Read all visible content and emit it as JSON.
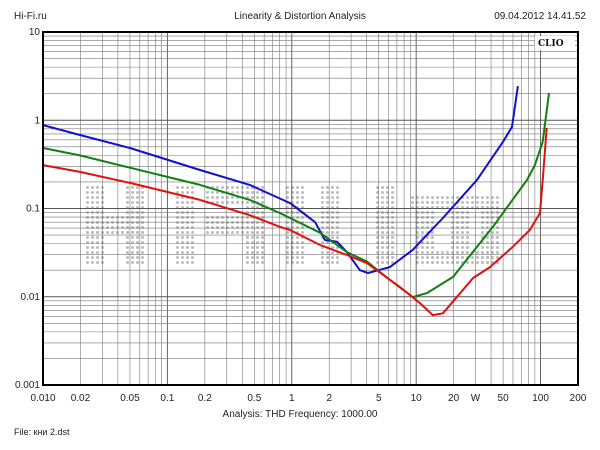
{
  "header": {
    "site": "Hi-Fi.ru",
    "title": "Linearity & Distortion Analysis",
    "datetime": "09.04.2012 14.41.52"
  },
  "footer": {
    "analysis": "Analysis: THD   Frequency: 1000.00",
    "file": "File: кни 2.dst"
  },
  "logo": "CLIO",
  "watermark": "HI-FI.RU",
  "chart_data": {
    "type": "line",
    "title": "Linearity & Distortion Analysis",
    "xlabel": "W",
    "ylabel": "THD %",
    "xscale": "log",
    "yscale": "log",
    "xlim": [
      0.01,
      200
    ],
    "ylim": [
      0.001,
      10
    ],
    "grid": true,
    "x_ticks": [
      "0.010",
      "0.02",
      "0.05",
      "0.1",
      "0.2",
      "0.5",
      "1",
      "2",
      "5",
      "10",
      "20",
      "W",
      "50",
      "100",
      "200"
    ],
    "x_tick_values": [
      0.01,
      0.02,
      0.05,
      0.1,
      0.2,
      0.5,
      1,
      2,
      5,
      10,
      20,
      30,
      50,
      100,
      200
    ],
    "y_ticks": [
      "10",
      "1",
      "0.1",
      "0.01",
      "0.001"
    ],
    "y_tick_values": [
      10,
      1,
      0.1,
      0.01,
      0.001
    ],
    "series": [
      {
        "name": "blue",
        "color": "#1010d0",
        "x": [
          0.01,
          0.0198,
          0.05,
          0.183,
          0.46,
          0.97,
          1.54,
          1.85,
          2.31,
          2.78,
          3.53,
          4.1,
          6.15,
          9.4,
          16.4,
          30.8,
          49.9,
          58.9,
          65.8
        ],
        "y": [
          0.88,
          0.68,
          0.485,
          0.273,
          0.185,
          0.115,
          0.07,
          0.044,
          0.042,
          0.032,
          0.02,
          0.0186,
          0.0217,
          0.034,
          0.078,
          0.21,
          0.57,
          0.84,
          2.44
        ]
      },
      {
        "name": "green",
        "color": "#108010",
        "x": [
          0.01,
          0.0198,
          0.05,
          0.183,
          0.46,
          0.8,
          0.97,
          1.69,
          2.78,
          4.03,
          6.15,
          9.4,
          12.2,
          19.8,
          41.4,
          77.7,
          90,
          104,
          117
        ],
        "y": [
          0.485,
          0.4,
          0.29,
          0.185,
          0.125,
          0.089,
          0.078,
          0.053,
          0.032,
          0.025,
          0.0155,
          0.0099,
          0.011,
          0.0168,
          0.062,
          0.21,
          0.31,
          0.57,
          2.04
        ]
      },
      {
        "name": "red",
        "color": "#e01010",
        "x": [
          0.01,
          0.0198,
          0.05,
          0.183,
          0.46,
          0.8,
          0.97,
          1.69,
          2.78,
          4.03,
          7.4,
          10.7,
          13.6,
          16.4,
          28.7,
          39.2,
          60,
          82,
          98.9,
          104,
          112
        ],
        "y": [
          0.31,
          0.26,
          0.195,
          0.125,
          0.084,
          0.062,
          0.057,
          0.0386,
          0.0297,
          0.024,
          0.0129,
          0.0085,
          0.0062,
          0.0065,
          0.0163,
          0.0217,
          0.037,
          0.057,
          0.089,
          0.21,
          0.82
        ]
      }
    ]
  }
}
